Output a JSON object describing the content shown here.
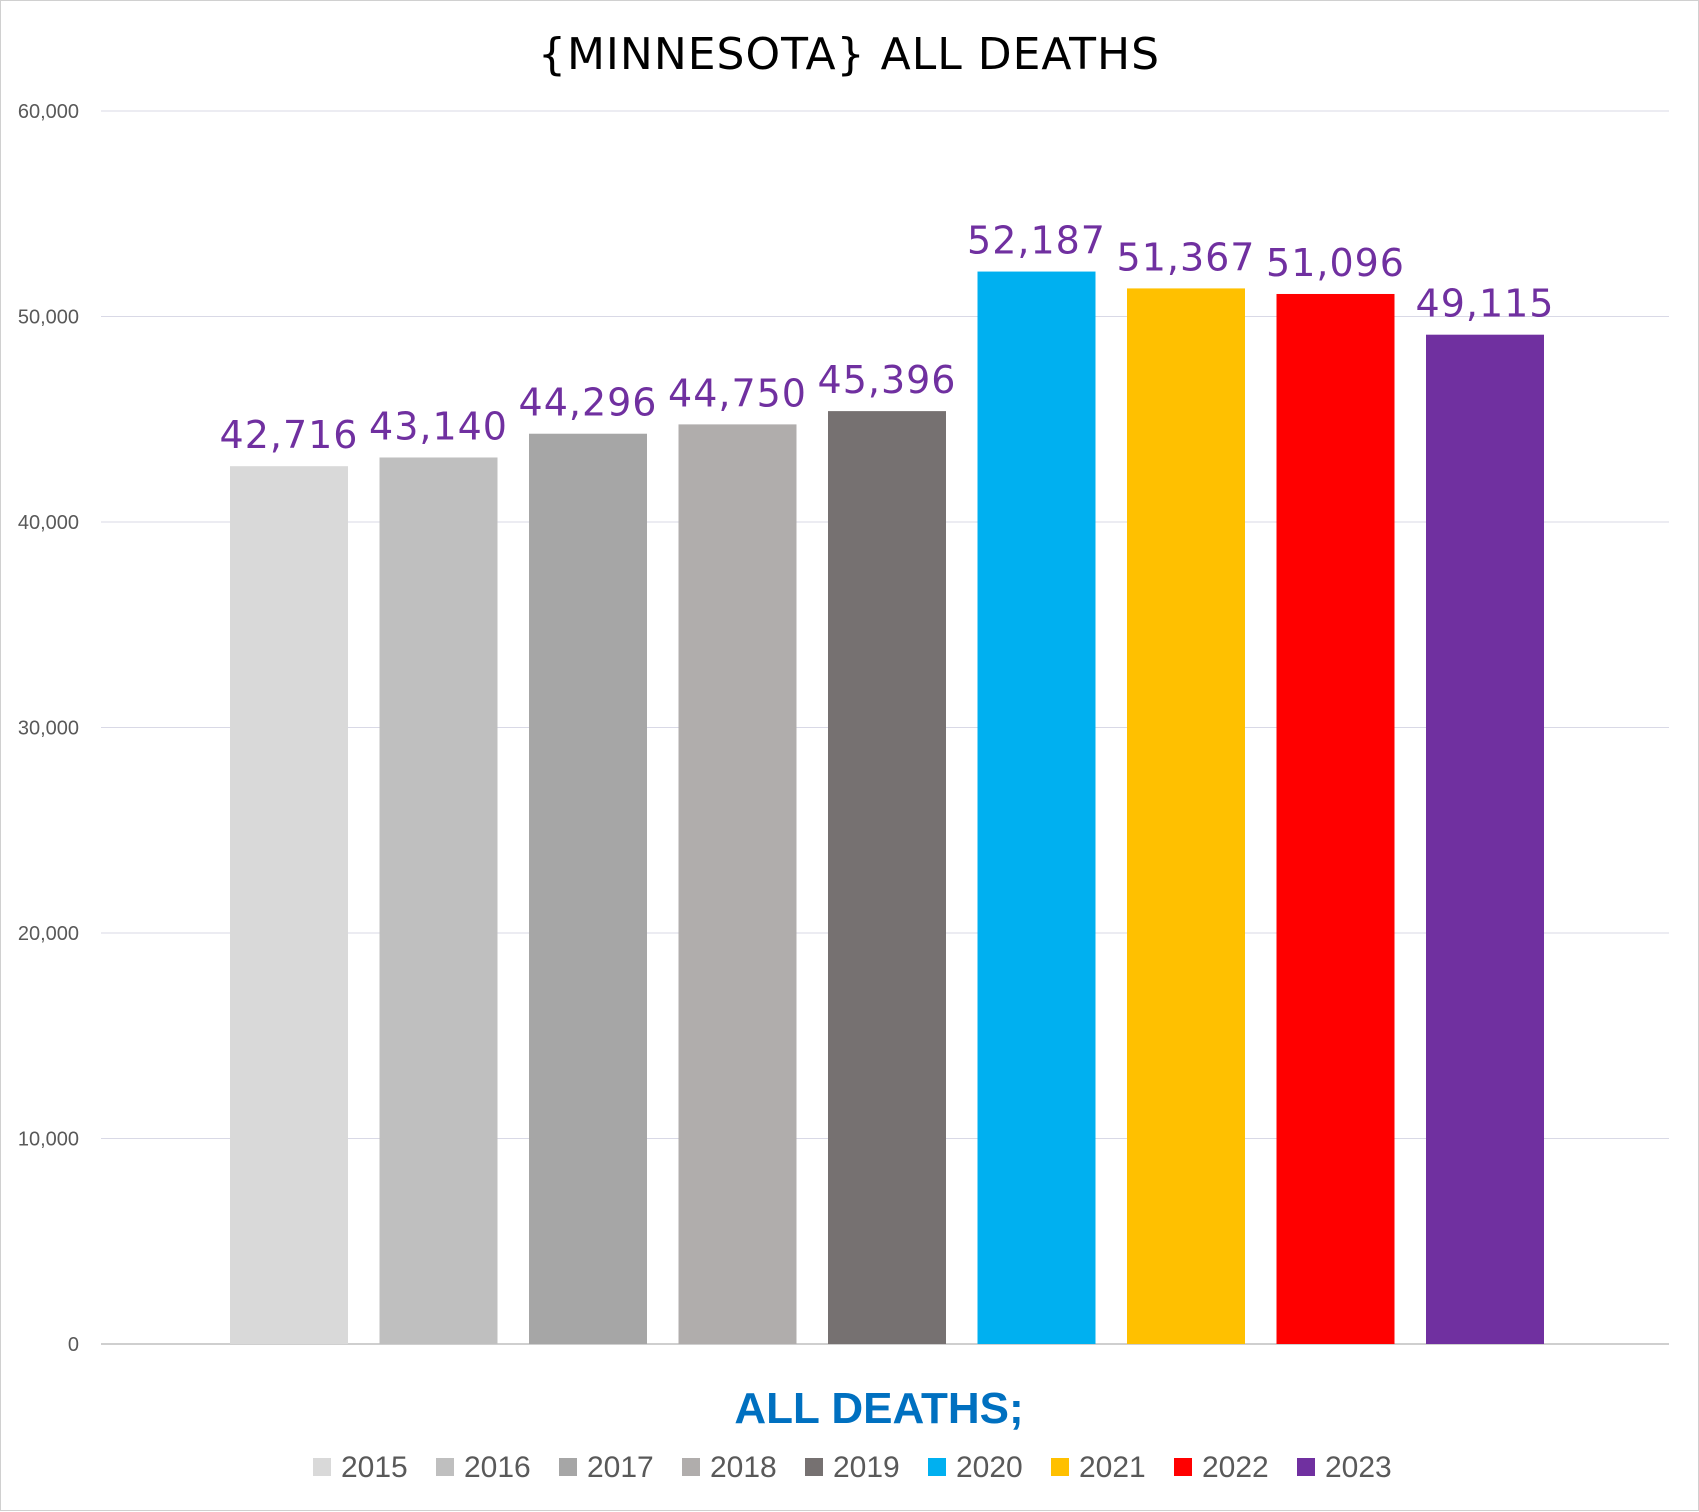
{
  "chart_data": {
    "type": "bar",
    "title": "{MINNESOTA}  ALL DEATHS",
    "xlabel": "ALL DEATHS;",
    "ylabel": "",
    "ylim": [
      0,
      60000
    ],
    "y_ticks": [
      "0",
      "10,000",
      "20,000",
      "30,000",
      "40,000",
      "50,000",
      "60,000"
    ],
    "grid": true,
    "legend_position": "bottom",
    "categories": [
      "2015",
      "2016",
      "2017",
      "2018",
      "2019",
      "2020",
      "2021",
      "2022",
      "2023"
    ],
    "series": [
      {
        "name": "2015",
        "value": 42716,
        "label": "42,716",
        "color": "#d9d9d9"
      },
      {
        "name": "2016",
        "value": 43140,
        "label": "43,140",
        "color": "#bfbfbf"
      },
      {
        "name": "2017",
        "value": 44296,
        "label": "44,296",
        "color": "#a6a6a6"
      },
      {
        "name": "2018",
        "value": 44750,
        "label": "44,750",
        "color": "#b0adac"
      },
      {
        "name": "2019",
        "value": 45396,
        "label": "45,396",
        "color": "#767171"
      },
      {
        "name": "2020",
        "value": 52187,
        "label": "52,187",
        "color": "#00b0f0"
      },
      {
        "name": "2021",
        "value": 51367,
        "label": "51,367",
        "color": "#ffc000"
      },
      {
        "name": "2022",
        "value": 51096,
        "label": "51,096",
        "color": "#ff0000"
      },
      {
        "name": "2023",
        "value": 49115,
        "label": "49,115",
        "color": "#7030a0"
      }
    ],
    "colors": {
      "data_label": "#7030a0",
      "xlabel": "#0070c0",
      "gridline": "#d9d9e6",
      "axis": "#bfbfbf"
    }
  }
}
